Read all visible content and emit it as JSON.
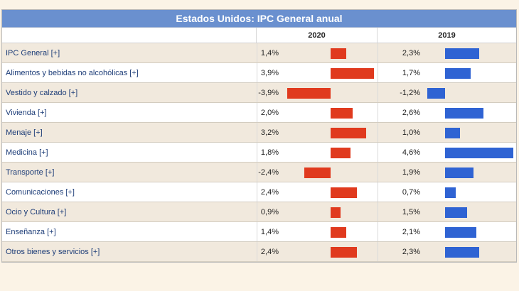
{
  "title": "Estados Unidos: IPC General anual",
  "columns": [
    "2020",
    "2019"
  ],
  "colors": {
    "y2020": "#e03a1e",
    "y2019": "#2f63d3",
    "header": "#6a90cf"
  },
  "chart_data": {
    "type": "bar",
    "title": "Estados Unidos: IPC General anual",
    "categories": [
      "IPC General [+]",
      "Alimentos y bebidas no alcohólicas [+]",
      "Vestido y calzado [+]",
      "Vivienda [+]",
      "Menaje [+]",
      "Medicina [+]",
      "Transporte [+]",
      "Comunicaciones [+]",
      "Ocio y Cultura [+]",
      "Enseñanza [+]",
      "Otros bienes y servicios [+]"
    ],
    "series": [
      {
        "name": "2020",
        "values": [
          1.4,
          3.9,
          -3.9,
          2.0,
          3.2,
          1.8,
          -2.4,
          2.4,
          0.9,
          1.4,
          2.4
        ],
        "labels": [
          "1,4%",
          "3,9%",
          "-3,9%",
          "2,0%",
          "3,2%",
          "1,8%",
          "-2,4%",
          "2,4%",
          "0,9%",
          "1,4%",
          "2,4%"
        ]
      },
      {
        "name": "2019",
        "values": [
          2.3,
          1.7,
          -1.2,
          2.6,
          1.0,
          4.6,
          1.9,
          0.7,
          1.5,
          2.1,
          2.3
        ],
        "labels": [
          "2,3%",
          "1,7%",
          "-1,2%",
          "2,6%",
          "1,0%",
          "4,6%",
          "1,9%",
          "0,7%",
          "1,5%",
          "2,1%",
          "2,3%"
        ]
      }
    ]
  }
}
